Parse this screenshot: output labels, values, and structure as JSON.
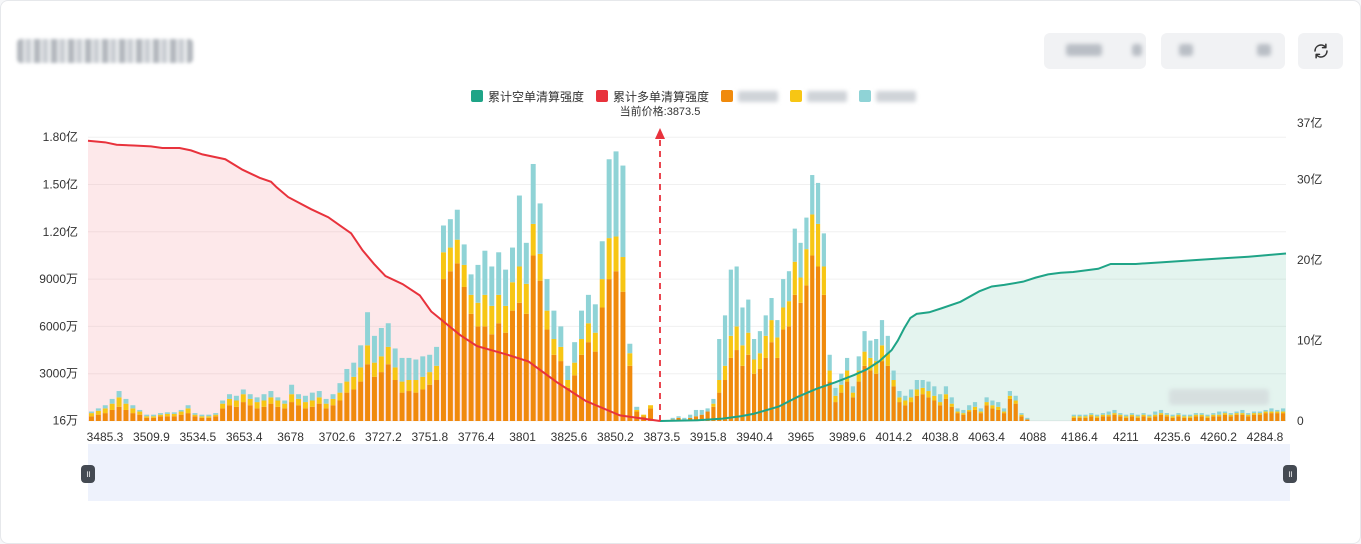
{
  "header": {
    "title": "",
    "select1": "",
    "select2": "",
    "refresh_icon": "refresh-icon"
  },
  "legend": {
    "short_label": "累计空单清算强度",
    "long_label": "累计多单清算强度",
    "other1_label": "",
    "other2_label": "",
    "other3_label": ""
  },
  "colors": {
    "short": "#1fa487",
    "long": "#e8323c",
    "bar_orange": "#f08a0c",
    "bar_yellow": "#f7c614",
    "bar_teal": "#8fd3d6",
    "long_fill": "rgba(245,150,160,0.22)",
    "short_fill": "rgba(120,200,175,0.20)"
  },
  "price_marker": {
    "label": "当前价格:3873.5",
    "value": 3873.5
  },
  "chart_data": {
    "type": "bar",
    "title": "",
    "xlabel": "",
    "ylabel": "",
    "x_ticks": [
      "3485.3",
      "3509.9",
      "3534.5",
      "3653.4",
      "3678",
      "3702.6",
      "3727.2",
      "3751.8",
      "3776.4",
      "3801",
      "3825.6",
      "3850.2",
      "3873.5",
      "3915.8",
      "3940.4",
      "3965",
      "3989.6",
      "4014.2",
      "4038.8",
      "4063.4",
      "4088",
      "4186.4",
      "4211",
      "4235.6",
      "4260.2",
      "4284.8"
    ],
    "y_left_ticks": [
      "16万",
      "3000万",
      "6000万",
      "9000万",
      "1.20亿",
      "1.50亿",
      "1.80亿"
    ],
    "y_left_values": [
      16,
      3000,
      6000,
      9000,
      12000,
      15000,
      18000
    ],
    "y_left_unit": "万",
    "y_right_ticks": [
      "0",
      "10亿",
      "20亿",
      "30亿",
      "37亿"
    ],
    "y_right_values": [
      0,
      10,
      20,
      30,
      37
    ],
    "y_right_unit": "亿",
    "ylim_left": [
      0,
      18900
    ],
    "ylim_right": [
      0,
      37
    ],
    "bars_left": [
      [
        300,
        200,
        100
      ],
      [
        400,
        250,
        150
      ],
      [
        500,
        300,
        200
      ],
      [
        700,
        400,
        300
      ],
      [
        900,
        600,
        400
      ],
      [
        700,
        400,
        300
      ],
      [
        500,
        300,
        200
      ],
      [
        400,
        200,
        100
      ],
      [
        200,
        100,
        100
      ],
      [
        200,
        100,
        100
      ],
      [
        300,
        100,
        100
      ],
      [
        300,
        150,
        100
      ],
      [
        300,
        150,
        100
      ],
      [
        400,
        200,
        100
      ],
      [
        500,
        300,
        200
      ],
      [
        300,
        100,
        100
      ],
      [
        200,
        100,
        100
      ],
      [
        200,
        100,
        100
      ],
      [
        300,
        100,
        100
      ],
      [
        800,
        300,
        200
      ],
      [
        1000,
        400,
        300
      ],
      [
        900,
        400,
        300
      ],
      [
        1200,
        500,
        300
      ],
      [
        1000,
        400,
        300
      ],
      [
        800,
        400,
        300
      ],
      [
        900,
        400,
        400
      ],
      [
        1100,
        400,
        400
      ],
      [
        900,
        400,
        200
      ],
      [
        800,
        300,
        200
      ],
      [
        1200,
        500,
        600
      ],
      [
        1000,
        400,
        300
      ],
      [
        800,
        400,
        400
      ],
      [
        900,
        400,
        500
      ],
      [
        1100,
        400,
        400
      ],
      [
        800,
        300,
        300
      ],
      [
        1000,
        400,
        300
      ],
      [
        1300,
        500,
        600
      ],
      [
        1800,
        700,
        800
      ],
      [
        2000,
        800,
        900
      ],
      [
        2500,
        900,
        1400
      ],
      [
        3600,
        1200,
        2100
      ],
      [
        2800,
        900,
        1700
      ],
      [
        3100,
        1000,
        1800
      ],
      [
        3600,
        1100,
        1500
      ],
      [
        2600,
        800,
        1200
      ],
      [
        1800,
        700,
        1500
      ],
      [
        1900,
        700,
        1400
      ],
      [
        1800,
        800,
        1300
      ],
      [
        2000,
        800,
        1300
      ],
      [
        2300,
        800,
        1100
      ],
      [
        2600,
        900,
        1200
      ],
      [
        9000,
        1700,
        1700
      ],
      [
        9500,
        1500,
        1800
      ],
      [
        10000,
        1500,
        1900
      ],
      [
        8500,
        1400,
        1300
      ],
      [
        6800,
        1200,
        1300
      ],
      [
        6000,
        1500,
        2400
      ],
      [
        6000,
        2000,
        2800
      ],
      [
        5500,
        1800,
        2500
      ],
      [
        6200,
        1800,
        2700
      ],
      [
        5600,
        1700,
        2300
      ],
      [
        7000,
        1800,
        2200
      ],
      [
        7500,
        2300,
        4500
      ],
      [
        6800,
        1900,
        2600
      ],
      [
        10500,
        2000,
        3800
      ],
      [
        8900,
        1700,
        3200
      ],
      [
        5800,
        1200,
        2000
      ],
      [
        4200,
        1000,
        1800
      ],
      [
        3800,
        900,
        1300
      ],
      [
        2100,
        500,
        900
      ],
      [
        2900,
        800,
        1300
      ],
      [
        4200,
        1000,
        1800
      ],
      [
        5000,
        1200,
        1800
      ],
      [
        4400,
        1200,
        1800
      ],
      [
        7200,
        1800,
        2400
      ],
      [
        9000,
        2600,
        5000
      ],
      [
        9500,
        2200,
        5400
      ],
      [
        8200,
        2200,
        5800
      ],
      [
        3500,
        800,
        600
      ],
      [
        600,
        100,
        200
      ],
      [
        300,
        100,
        0
      ],
      [
        800,
        200,
        0
      ]
    ],
    "bars_right": [
      [
        0,
        0,
        0
      ],
      [
        100,
        0,
        100
      ],
      [
        200,
        0,
        100
      ],
      [
        100,
        0,
        100
      ],
      [
        200,
        0,
        200
      ],
      [
        300,
        0,
        400
      ],
      [
        400,
        0,
        300
      ],
      [
        600,
        0,
        200
      ],
      [
        900,
        200,
        300
      ],
      [
        1800,
        800,
        2600
      ],
      [
        2600,
        900,
        3200
      ],
      [
        4000,
        1400,
        4200
      ],
      [
        4500,
        1500,
        3800
      ],
      [
        3500,
        1300,
        2400
      ],
      [
        4200,
        1400,
        2100
      ],
      [
        3000,
        900,
        1300
      ],
      [
        3300,
        1000,
        1400
      ],
      [
        4000,
        1400,
        1300
      ],
      [
        5000,
        1400,
        1400
      ],
      [
        4000,
        1300,
        1100
      ],
      [
        5800,
        1400,
        1800
      ],
      [
        6000,
        1600,
        1900
      ],
      [
        8000,
        2100,
        2100
      ],
      [
        7500,
        1600,
        2200
      ],
      [
        8600,
        2300,
        2000
      ],
      [
        10500,
        2600,
        2500
      ],
      [
        9800,
        2700,
        2600
      ],
      [
        8000,
        1800,
        2100
      ],
      [
        2500,
        700,
        1000
      ],
      [
        1200,
        400,
        500
      ],
      [
        1800,
        500,
        700
      ],
      [
        2500,
        700,
        800
      ],
      [
        1500,
        300,
        400
      ],
      [
        2500,
        700,
        900
      ],
      [
        3500,
        900,
        1300
      ],
      [
        3200,
        800,
        1100
      ],
      [
        3000,
        800,
        1400
      ],
      [
        3800,
        1000,
        1600
      ],
      [
        3500,
        800,
        1100
      ],
      [
        2200,
        400,
        600
      ],
      [
        1200,
        300,
        400
      ],
      [
        1000,
        300,
        300
      ],
      [
        1200,
        300,
        500
      ],
      [
        1600,
        400,
        600
      ],
      [
        1700,
        400,
        500
      ],
      [
        1500,
        400,
        600
      ],
      [
        1300,
        300,
        600
      ],
      [
        1000,
        200,
        500
      ],
      [
        1400,
        300,
        500
      ],
      [
        900,
        200,
        400
      ],
      [
        500,
        100,
        200
      ],
      [
        400,
        100,
        200
      ],
      [
        600,
        100,
        300
      ],
      [
        700,
        200,
        300
      ],
      [
        500,
        100,
        200
      ],
      [
        1000,
        200,
        300
      ],
      [
        800,
        200,
        300
      ],
      [
        700,
        200,
        300
      ],
      [
        500,
        100,
        200
      ],
      [
        1400,
        200,
        300
      ],
      [
        1100,
        200,
        300
      ],
      [
        300,
        100,
        100
      ],
      [
        100,
        0,
        100
      ],
      [
        0,
        0,
        0
      ],
      [
        0,
        0,
        0
      ],
      [
        0,
        0,
        0
      ],
      [
        0,
        0,
        0
      ],
      [
        0,
        0,
        0
      ],
      [
        0,
        0,
        0
      ],
      [
        0,
        0,
        0
      ],
      [
        200,
        100,
        100
      ],
      [
        200,
        100,
        100
      ],
      [
        200,
        100,
        100
      ],
      [
        300,
        100,
        100
      ],
      [
        200,
        100,
        100
      ],
      [
        300,
        100,
        100
      ],
      [
        300,
        100,
        200
      ],
      [
        400,
        100,
        200
      ],
      [
        300,
        100,
        100
      ],
      [
        200,
        100,
        100
      ],
      [
        300,
        100,
        100
      ],
      [
        200,
        100,
        100
      ],
      [
        300,
        100,
        100
      ],
      [
        200,
        100,
        100
      ],
      [
        300,
        100,
        200
      ],
      [
        400,
        100,
        200
      ],
      [
        300,
        100,
        100
      ],
      [
        200,
        100,
        100
      ],
      [
        300,
        100,
        100
      ],
      [
        200,
        100,
        100
      ],
      [
        200,
        100,
        100
      ],
      [
        300,
        100,
        100
      ],
      [
        300,
        100,
        100
      ],
      [
        200,
        100,
        100
      ],
      [
        300,
        100,
        100
      ],
      [
        300,
        100,
        200
      ],
      [
        400,
        100,
        100
      ],
      [
        300,
        100,
        100
      ],
      [
        400,
        100,
        100
      ],
      [
        400,
        100,
        200
      ],
      [
        300,
        100,
        100
      ],
      [
        400,
        100,
        100
      ],
      [
        400,
        100,
        100
      ],
      [
        500,
        100,
        100
      ],
      [
        500,
        100,
        200
      ],
      [
        500,
        100,
        100
      ],
      [
        500,
        100,
        200
      ]
    ],
    "long_curve": [
      [
        0,
        34.8
      ],
      [
        0.03,
        34.6
      ],
      [
        0.05,
        34.3
      ],
      [
        0.08,
        34.2
      ],
      [
        0.11,
        34.1
      ],
      [
        0.13,
        33.9
      ],
      [
        0.16,
        33.9
      ],
      [
        0.18,
        33.6
      ],
      [
        0.2,
        33.1
      ],
      [
        0.24,
        32.5
      ],
      [
        0.27,
        31.2
      ],
      [
        0.3,
        30.2
      ],
      [
        0.32,
        29.7
      ],
      [
        0.33,
        29.0
      ],
      [
        0.35,
        27.8
      ],
      [
        0.39,
        26.3
      ],
      [
        0.42,
        25.3
      ],
      [
        0.44,
        24.3
      ],
      [
        0.46,
        23.3
      ],
      [
        0.48,
        21.2
      ],
      [
        0.5,
        19.5
      ],
      [
        0.52,
        18.0
      ],
      [
        0.55,
        17.0
      ],
      [
        0.58,
        15.6
      ],
      [
        0.6,
        13.6
      ],
      [
        0.65,
        10.7
      ],
      [
        0.68,
        9.3
      ],
      [
        0.73,
        8.3
      ],
      [
        0.77,
        7.4
      ],
      [
        0.82,
        4.8
      ],
      [
        0.87,
        2.5
      ],
      [
        0.93,
        0.7
      ],
      [
        1,
        0
      ]
    ],
    "short_curve": [
      [
        0,
        0
      ],
      [
        0.06,
        0.1
      ],
      [
        0.1,
        0.3
      ],
      [
        0.13,
        0.6
      ],
      [
        0.15,
        0.9
      ],
      [
        0.19,
        1.8
      ],
      [
        0.22,
        3.0
      ],
      [
        0.25,
        4.0
      ],
      [
        0.28,
        4.8
      ],
      [
        0.31,
        5.7
      ],
      [
        0.33,
        6.4
      ],
      [
        0.35,
        7.4
      ],
      [
        0.37,
        8.8
      ],
      [
        0.38,
        10.0
      ],
      [
        0.39,
        11.5
      ],
      [
        0.4,
        12.8
      ],
      [
        0.41,
        13.3
      ],
      [
        0.43,
        13.5
      ],
      [
        0.45,
        14.0
      ],
      [
        0.48,
        14.8
      ],
      [
        0.51,
        16.1
      ],
      [
        0.53,
        16.7
      ],
      [
        0.55,
        16.9
      ],
      [
        0.58,
        17.3
      ],
      [
        0.6,
        17.8
      ],
      [
        0.62,
        18.2
      ],
      [
        0.64,
        18.4
      ],
      [
        0.66,
        18.5
      ],
      [
        0.68,
        18.7
      ],
      [
        0.7,
        18.9
      ],
      [
        0.72,
        19.5
      ],
      [
        0.76,
        19.5
      ],
      [
        0.8,
        19.7
      ],
      [
        0.86,
        20.0
      ],
      [
        0.9,
        20.2
      ],
      [
        0.94,
        20.4
      ],
      [
        0.97,
        20.6
      ],
      [
        1,
        20.8
      ]
    ]
  },
  "slider": {
    "left_handle": "॥",
    "right_handle": "॥"
  }
}
